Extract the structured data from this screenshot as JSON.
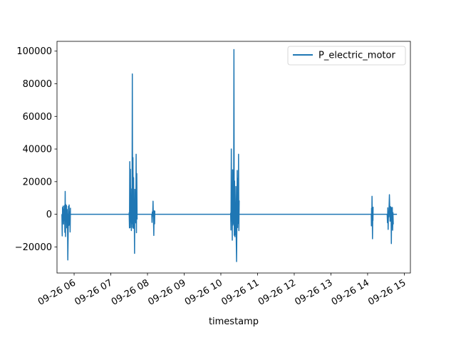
{
  "chart_data": {
    "type": "line",
    "title": "",
    "xlabel": "timestamp",
    "ylabel": "",
    "x_ticks": [
      "09-26 06",
      "09-26 07",
      "09-26 08",
      "09-26 09",
      "09-26 10",
      "09-26 11",
      "09-26 12",
      "09-26 13",
      "09-26 14",
      "09-26 15"
    ],
    "y_ticks": [
      "−20000",
      "0",
      "20000",
      "40000",
      "60000",
      "80000",
      "100000"
    ],
    "y_tick_values": [
      -20000,
      0,
      20000,
      40000,
      60000,
      80000,
      100000
    ],
    "ylim": [
      -36000,
      106000
    ],
    "xlim": [
      "2023-09-26T05:32",
      "2023-09-26T15:10"
    ],
    "grid": false,
    "legend_position": "upper right",
    "series": [
      {
        "name": "P_electric_motor",
        "color": "#1f77b4",
        "x_start": "2023-09-26T05:40",
        "x_end": "2023-09-26T14:48",
        "bursts": [
          {
            "start": "2023-09-26T05:40",
            "end": "2023-09-26T05:54",
            "min": -28000,
            "max": 14000
          },
          {
            "start": "2023-09-26T07:30",
            "end": "2023-09-26T07:43",
            "min": -24000,
            "max": 86000
          },
          {
            "start": "2023-09-26T08:07",
            "end": "2023-09-26T08:12",
            "min": -13000,
            "max": 8000
          },
          {
            "start": "2023-09-26T10:16",
            "end": "2023-09-26T10:30",
            "min": -29000,
            "max": 101000
          },
          {
            "start": "2023-09-26T14:06",
            "end": "2023-09-26T14:09",
            "min": -15000,
            "max": 11000
          },
          {
            "start": "2023-09-26T14:32",
            "end": "2023-09-26T14:42",
            "min": -18000,
            "max": 12000
          }
        ]
      }
    ]
  }
}
